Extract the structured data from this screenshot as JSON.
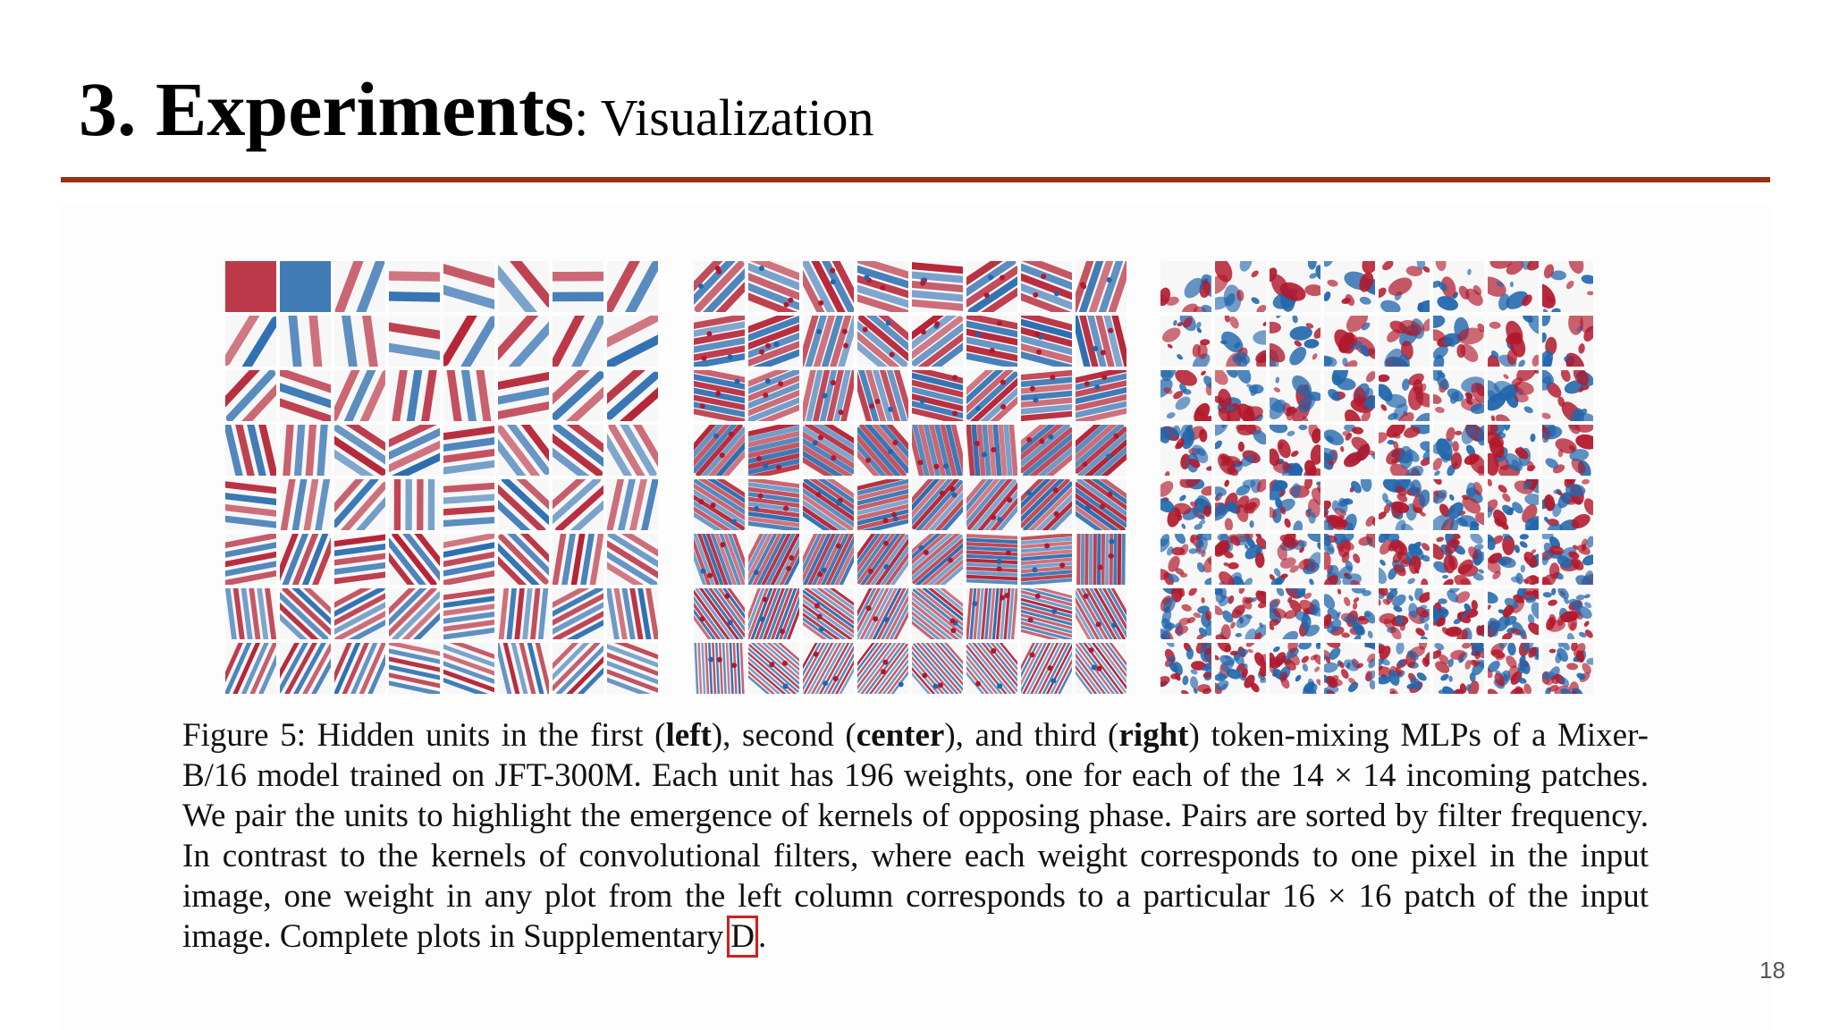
{
  "slide": {
    "title_main": "3. Experiments",
    "title_sub": ": Visualization",
    "page_number": "18"
  },
  "figure": {
    "grid": {
      "rows": 8,
      "cols": 8
    },
    "panels": [
      {
        "name": "left",
        "detail": 1
      },
      {
        "name": "center",
        "detail": 2
      },
      {
        "name": "right",
        "detail": 3
      }
    ],
    "colors": {
      "positive": "#b2182b",
      "negative": "#2166ac",
      "background": "#f7f7f7"
    },
    "caption": {
      "t1": "Figure 5: Hidden units in the first (",
      "b1": "left",
      "t2": "), second (",
      "b2": "center",
      "t3": "), and third (",
      "b3": "right",
      "t4": ") token-mixing MLPs of a Mixer-B/16 model trained on JFT-300M. Each unit has 196 weights, one for each of the 14 × 14 incoming patches. We pair the units to highlight the emergence of kernels of opposing phase. Pairs are sorted by filter frequency. In contrast to the kernels of convolutional filters, where each weight corresponds to one pixel in the input image, one weight in any plot from the left column corresponds to a particular 16 × 16 patch of the input image. Complete plots in Supplementary",
      "ref": "D",
      "t5": "."
    }
  }
}
